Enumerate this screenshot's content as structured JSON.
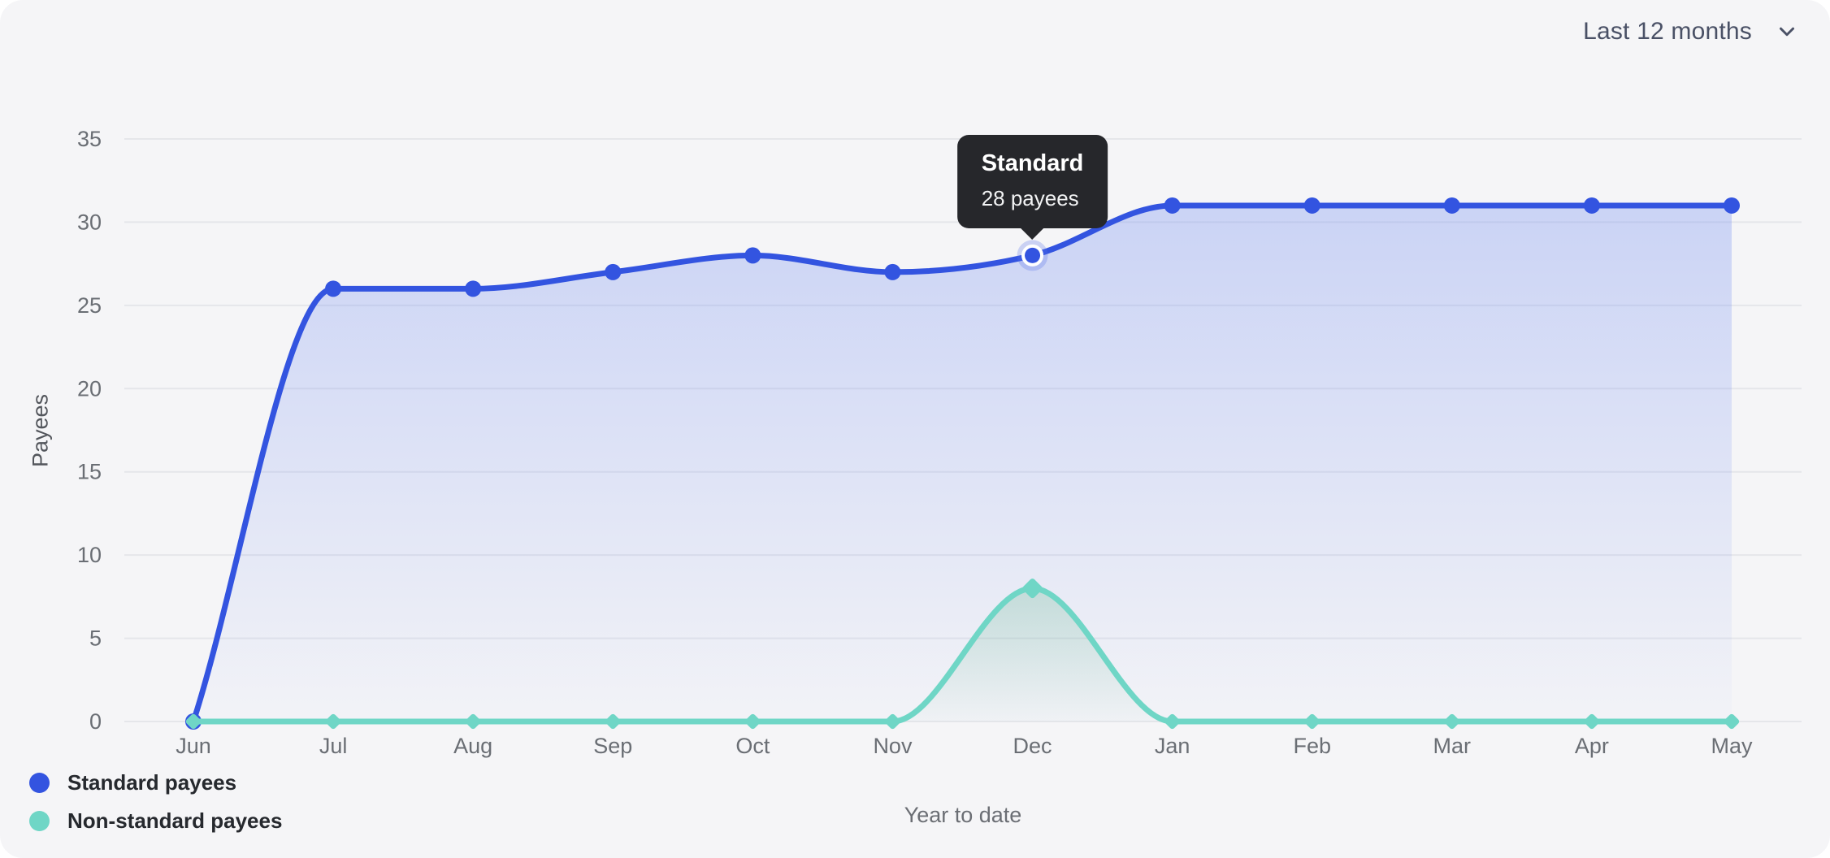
{
  "header": {
    "range_label": "Last 12 months",
    "range_icon": "chevron-down-icon"
  },
  "chart_data": {
    "type": "area",
    "x": [
      "Jun",
      "Jul",
      "Aug",
      "Sep",
      "Oct",
      "Nov",
      "Dec",
      "Jan",
      "Feb",
      "Mar",
      "Apr",
      "May"
    ],
    "series": [
      {
        "name": "Standard payees",
        "color": "#3354e0",
        "marker": "circle",
        "values": [
          0,
          26,
          26,
          27,
          28,
          27,
          28,
          31,
          31,
          31,
          31,
          31
        ]
      },
      {
        "name": "Non-standard payees",
        "color": "#6fd6c6",
        "marker": "diamond",
        "values": [
          0,
          0,
          0,
          0,
          0,
          0,
          8,
          0,
          0,
          0,
          0,
          0
        ]
      }
    ],
    "ylabel": "Payees",
    "xlabel": "Year to date",
    "y_ticks": [
      0,
      5,
      10,
      15,
      20,
      25,
      30,
      35
    ],
    "ylim": [
      0,
      35
    ],
    "grid": true,
    "legend_position": "bottom-left"
  },
  "tooltip": {
    "title": "Standard",
    "value": "28 payees",
    "month": "Dec",
    "series": "Standard payees"
  },
  "colors": {
    "card_background": "#f5f5f7",
    "gridline": "#e5e6ea",
    "axis_text": "#6a6e74",
    "standard_blue": "#3354e0",
    "non_standard_teal": "#6fd6c6",
    "tooltip_background": "#26272b",
    "legend_text": "#26292e",
    "range_text": "#4a5166"
  }
}
